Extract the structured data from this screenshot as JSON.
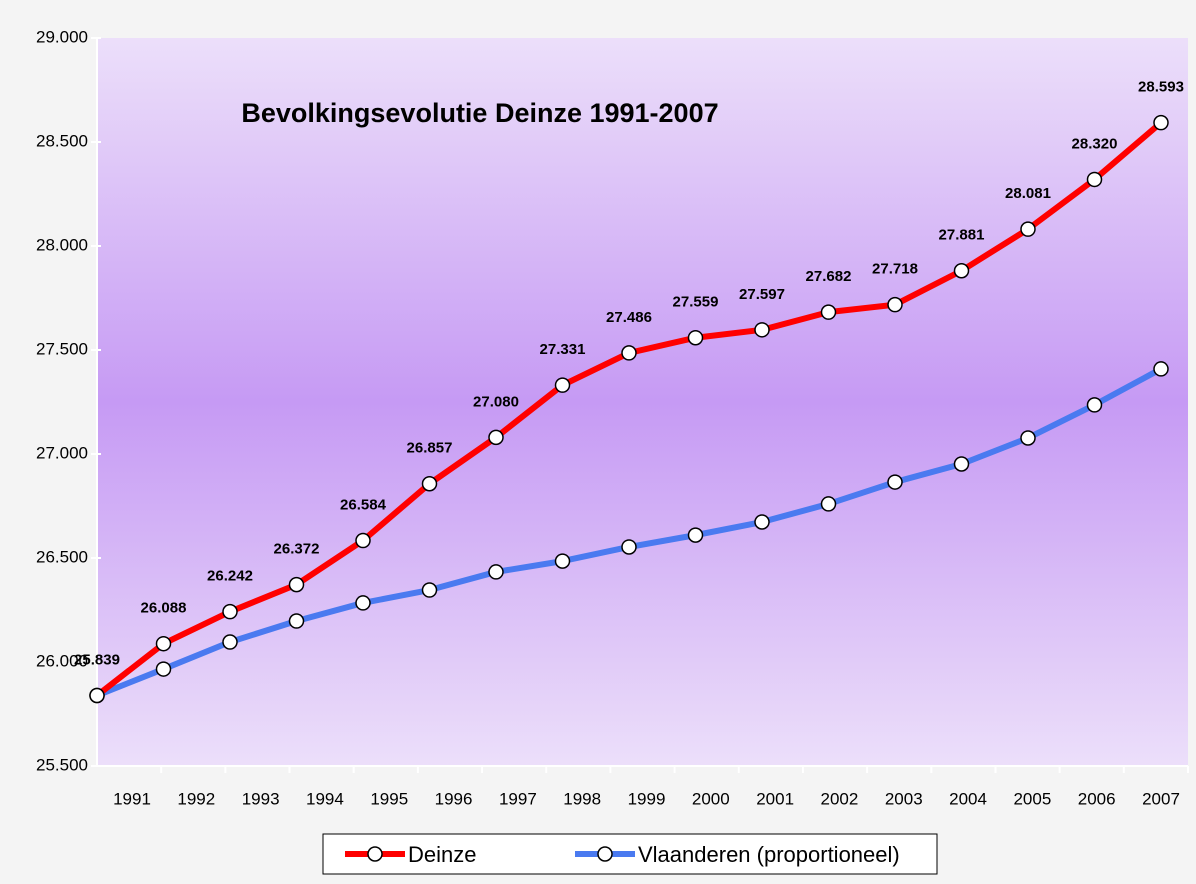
{
  "chart_data": {
    "type": "line",
    "title": "Bevolkingsevolutie Deinze 1991-2007",
    "categories": [
      "1991",
      "1992",
      "1993",
      "1994",
      "1995",
      "1996",
      "1997",
      "1998",
      "1999",
      "2000",
      "2001",
      "2002",
      "2003",
      "2004",
      "2005",
      "2006",
      "2007"
    ],
    "series": [
      {
        "name": "Deinze",
        "color": "#ff0000",
        "values": [
          25839,
          26088,
          26242,
          26372,
          26584,
          26857,
          27080,
          27331,
          27486,
          27559,
          27597,
          27682,
          27718,
          27881,
          28081,
          28320,
          28593
        ],
        "value_labels": [
          "25.839",
          "26.088",
          "26.242",
          "26.372",
          "26.584",
          "26.857",
          "27.080",
          "27.331",
          "27.486",
          "27.559",
          "27.597",
          "27.682",
          "27.718",
          "27.881",
          "28.081",
          "28.320",
          "28.593"
        ]
      },
      {
        "name": "Vlaanderen (proportioneel)",
        "color": "#4a7af0",
        "values": [
          25839,
          25966,
          26096,
          26197,
          26284,
          26346,
          26433,
          26485,
          26553,
          26610,
          26673,
          26760,
          26865,
          26952,
          27077,
          27236,
          27409
        ]
      }
    ],
    "ylim": [
      25500,
      29000
    ],
    "yticks": [
      {
        "value": 25500,
        "label": "25.500"
      },
      {
        "value": 26000,
        "label": "26.000"
      },
      {
        "value": 26500,
        "label": "26.500"
      },
      {
        "value": 27000,
        "label": "27.000"
      },
      {
        "value": 27500,
        "label": "27.500"
      },
      {
        "value": 28000,
        "label": "28.000"
      },
      {
        "value": 28500,
        "label": "28.500"
      },
      {
        "value": 29000,
        "label": "29.000"
      }
    ],
    "legend": "bottom"
  }
}
